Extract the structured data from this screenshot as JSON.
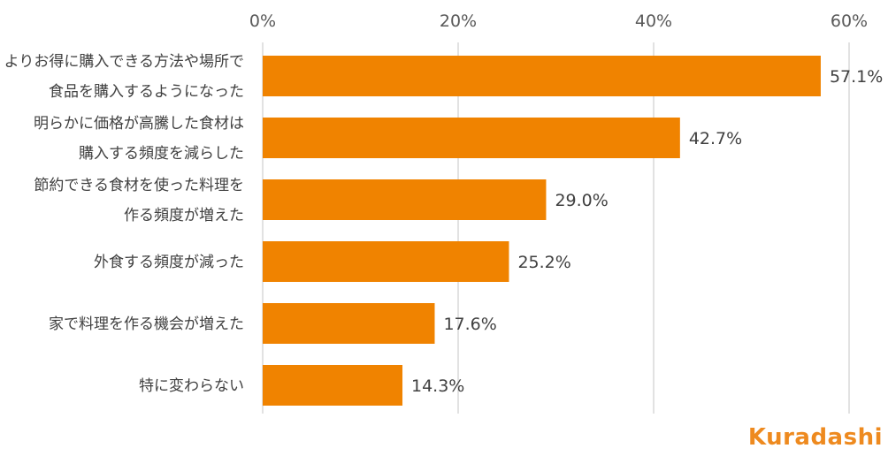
{
  "chart_data": {
    "type": "bar",
    "orientation": "horizontal",
    "categories": [
      [
        "よりお得に購入できる方法や場所で",
        "食品を購入するようになった"
      ],
      [
        "明らかに価格が高騰した食材は",
        "購入する頻度を減らした"
      ],
      [
        "節約できる食材を使った料理を",
        "作る頻度が増えた"
      ],
      [
        "外食する頻度が減った"
      ],
      [
        "家で料理を作る機会が増えた"
      ],
      [
        "特に変わらない"
      ]
    ],
    "values": [
      57.1,
      42.7,
      29.0,
      25.2,
      17.6,
      14.3
    ],
    "value_labels": [
      "57.1%",
      "42.7%",
      "29.0%",
      "25.2%",
      "17.6%",
      "14.3%"
    ],
    "xlim": [
      0,
      60
    ],
    "xticks": [
      0,
      20,
      40,
      60
    ],
    "xtick_labels": [
      "0%",
      "20%",
      "40%",
      "60%"
    ],
    "xaxis_position": "top",
    "grid": true,
    "bar_color": "#F08300",
    "title": "",
    "xlabel": "",
    "ylabel": ""
  },
  "brand": {
    "logo_text": "Kuradashi",
    "logo_color": "#EE8A1F"
  }
}
